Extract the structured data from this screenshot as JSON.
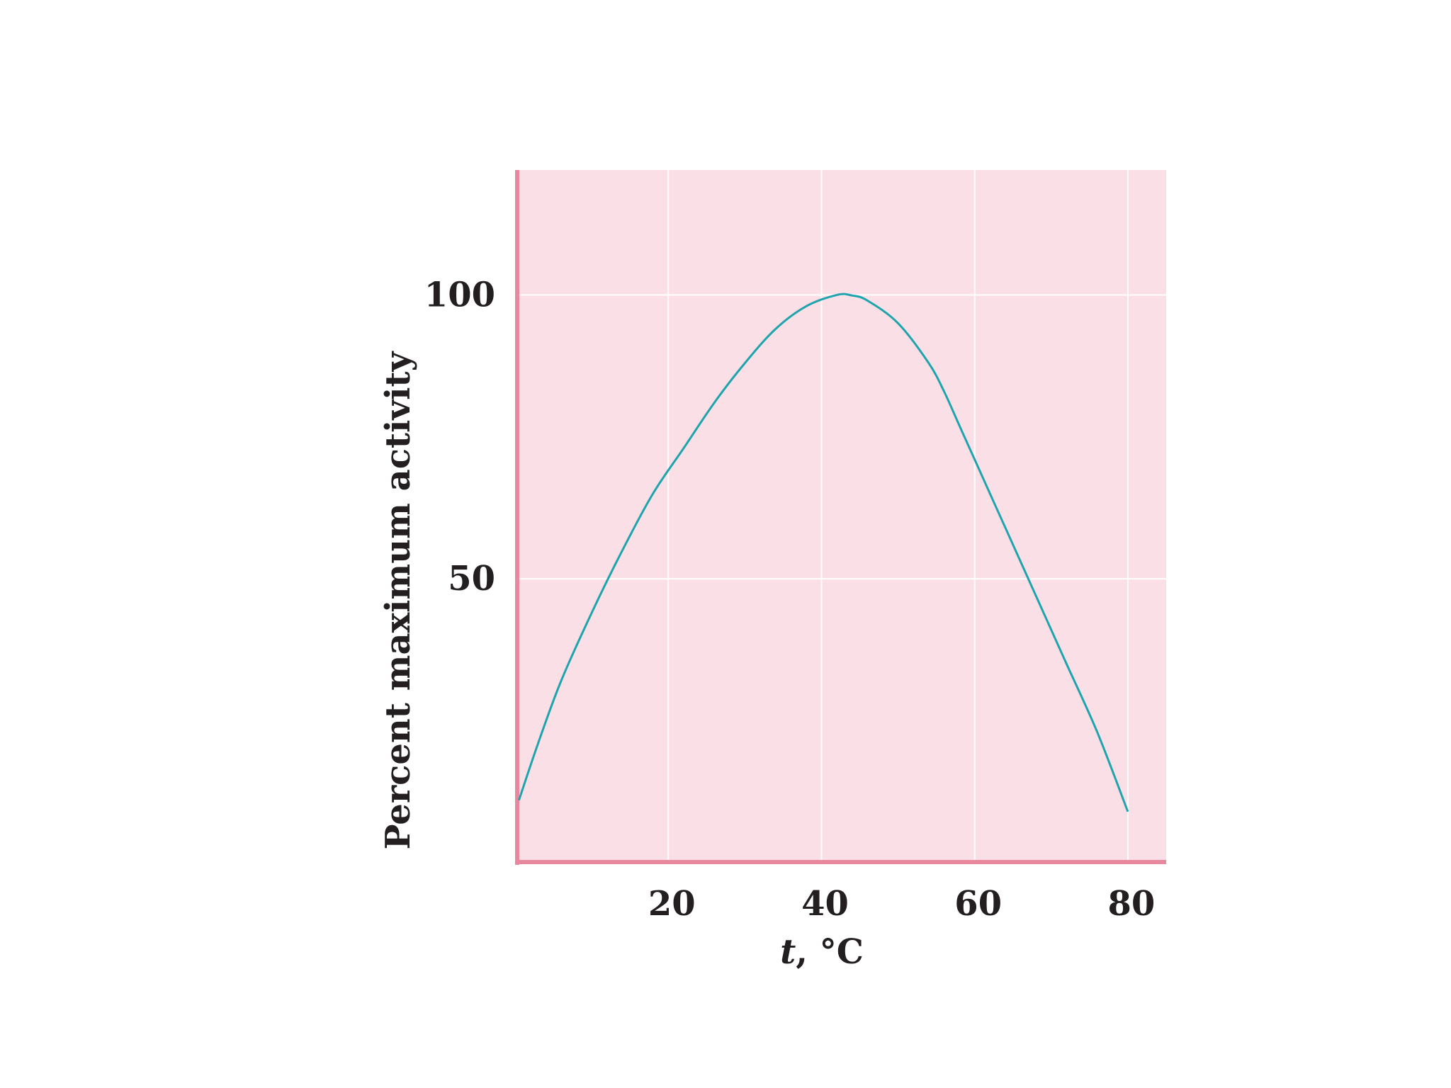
{
  "chart_data": {
    "type": "line",
    "title": "",
    "xlabel": {
      "var": "t",
      "rest": ", °C"
    },
    "ylabel": "Percent maximum activity",
    "xlim": [
      0,
      85
    ],
    "ylim": [
      0,
      122
    ],
    "x_ticks": [
      20,
      40,
      60,
      80
    ],
    "y_ticks": [
      50,
      100
    ],
    "grid": true,
    "legend": "none",
    "colors": {
      "plot_background": "#fbdfe6",
      "axis": "#e8889f",
      "grid": "#ffffff",
      "line": "#1ea4ad",
      "text": "#231f20"
    },
    "series": [
      {
        "x": [
          0.5,
          3,
          6,
          10,
          14,
          18,
          22,
          26,
          30,
          34,
          38,
          42,
          44,
          46,
          50,
          54,
          56,
          58,
          60,
          64,
          68,
          72,
          76,
          80
        ],
        "y": [
          11,
          21,
          32,
          44,
          55,
          65,
          73,
          81,
          88,
          94,
          98,
          100,
          99.9,
          99,
          95,
          88,
          83,
          77,
          71,
          59,
          47,
          35,
          23,
          9
        ]
      }
    ]
  }
}
